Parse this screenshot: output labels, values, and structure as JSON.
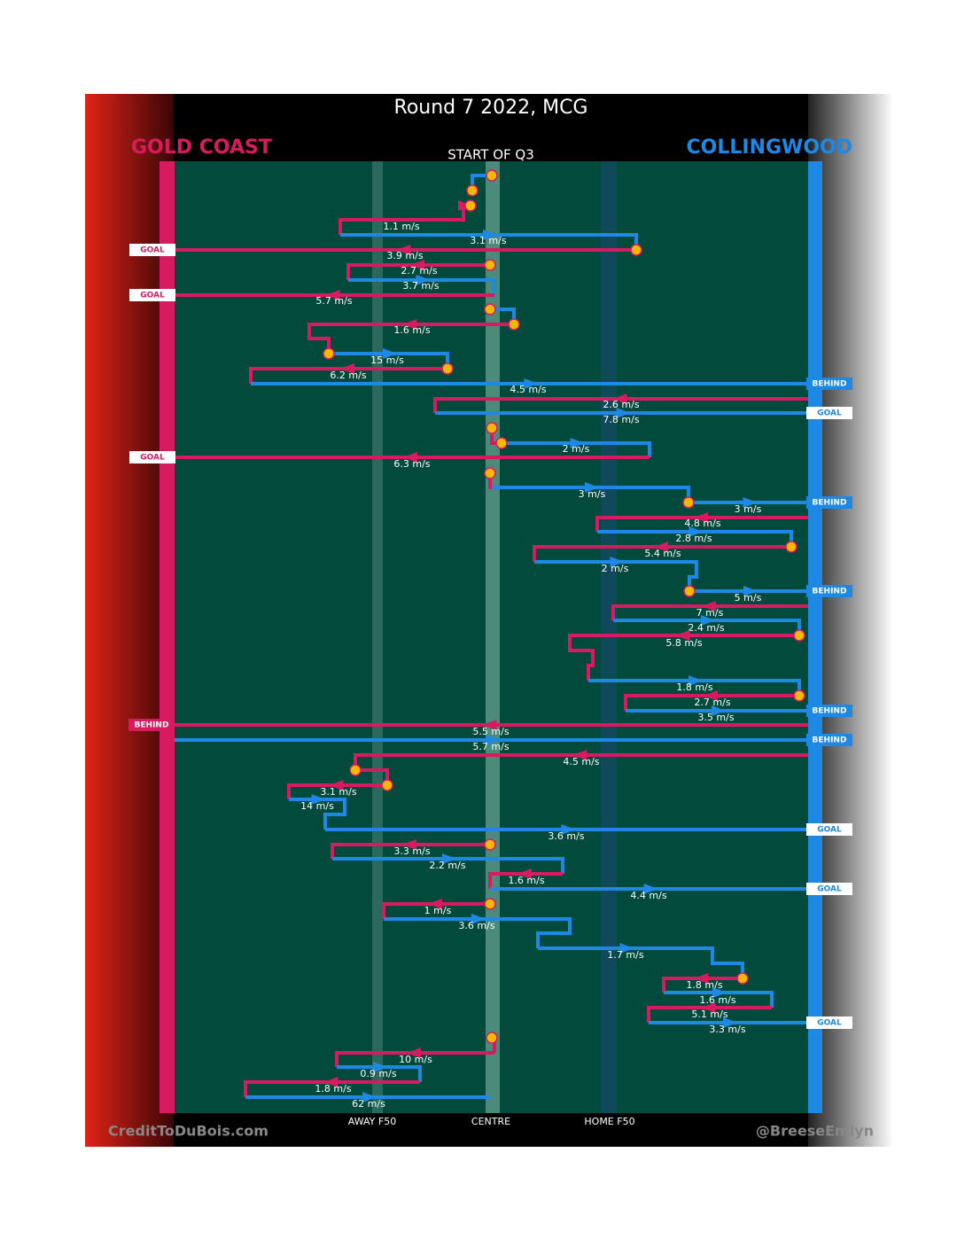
{
  "header": {
    "title": "Round 7 2022, MCG",
    "left_team": "GOLD COAST",
    "right_team": "COLLINGWOOD",
    "subtitle": "START OF Q3"
  },
  "movements": [
    {
      "label": "1.1 m/s",
      "color": "#d81b60"
    },
    {
      "label": "3.1 m/s",
      "color": "#1e88e5"
    },
    {
      "label": "3.9 m/s",
      "color": "#d81b60"
    },
    {
      "label": "2.7 m/s",
      "color": "#d81b60"
    },
    {
      "label": "3.7 m/s",
      "color": "#1e88e5"
    },
    {
      "label": "5.7 m/s",
      "color": "#d81b60"
    },
    {
      "label": "1.6 m/s",
      "color": "#d81b60"
    },
    {
      "label": "15 m/s",
      "color": "#1e88e5"
    },
    {
      "label": "6.2 m/s",
      "color": "#d81b60"
    },
    {
      "label": "4.5 m/s",
      "color": "#1e88e5"
    },
    {
      "label": "2.6 m/s",
      "color": "#d81b60"
    },
    {
      "label": "7.8 m/s",
      "color": "#1e88e5"
    },
    {
      "label": "2 m/s",
      "color": "#1e88e5"
    },
    {
      "label": "6.3 m/s",
      "color": "#d81b60"
    },
    {
      "label": "3 m/s",
      "color": "#1e88e5"
    },
    {
      "label": "3 m/s",
      "color": "#1e88e5"
    },
    {
      "label": "4.8 m/s",
      "color": "#d81b60"
    },
    {
      "label": "2.8 m/s",
      "color": "#1e88e5"
    },
    {
      "label": "5.4 m/s",
      "color": "#d81b60"
    },
    {
      "label": "2 m/s",
      "color": "#1e88e5"
    },
    {
      "label": "5 m/s",
      "color": "#1e88e5"
    },
    {
      "label": "7 m/s",
      "color": "#d81b60"
    },
    {
      "label": "2.4 m/s",
      "color": "#1e88e5"
    },
    {
      "label": "5.8 m/s",
      "color": "#d81b60"
    },
    {
      "label": "1.8 m/s",
      "color": "#1e88e5"
    },
    {
      "label": "2.7 m/s",
      "color": "#d81b60"
    },
    {
      "label": "3.5 m/s",
      "color": "#1e88e5"
    },
    {
      "label": "5.5 m/s",
      "color": "#d81b60"
    },
    {
      "label": "5.7 m/s",
      "color": "#1e88e5"
    },
    {
      "label": "4.5 m/s",
      "color": "#d81b60"
    },
    {
      "label": "3.1 m/s",
      "color": "#d81b60"
    },
    {
      "label": "14 m/s",
      "color": "#1e88e5"
    },
    {
      "label": "3.6 m/s",
      "color": "#1e88e5"
    },
    {
      "label": "3.3 m/s",
      "color": "#d81b60"
    },
    {
      "label": "2.2 m/s",
      "color": "#1e88e5"
    },
    {
      "label": "1.6 m/s",
      "color": "#d81b60"
    },
    {
      "label": "4.4 m/s",
      "color": "#1e88e5"
    },
    {
      "label": "1 m/s",
      "color": "#d81b60"
    },
    {
      "label": "3.6 m/s",
      "color": "#1e88e5"
    },
    {
      "label": "1.7 m/s",
      "color": "#1e88e5"
    },
    {
      "label": "1.8 m/s",
      "color": "#d81b60"
    },
    {
      "label": "1.6 m/s",
      "color": "#1e88e5"
    },
    {
      "label": "5.1 m/s",
      "color": "#d81b60"
    },
    {
      "label": "3.3 m/s",
      "color": "#1e88e5"
    },
    {
      "label": "10 m/s",
      "color": "#d81b60"
    },
    {
      "label": "0.9 m/s",
      "color": "#1e88e5"
    },
    {
      "label": "1.8 m/s",
      "color": "#d81b60"
    },
    {
      "label": "62 m/s",
      "color": "#1e88e5"
    }
  ],
  "left_tags": [
    "GOAL",
    "GOAL",
    "GOAL",
    "BEHIND"
  ],
  "right_tags": [
    "BEHIND",
    "GOAL",
    "BEHIND",
    "BEHIND",
    "BEHIND",
    "BEHIND",
    "GOAL",
    "GOAL",
    "GOAL"
  ],
  "field_labels": [
    "AWAY F50",
    "CENTRE",
    "HOME F50"
  ],
  "footer": {
    "left": "CreditToDuBois.com",
    "right": "@BreeseEmlyn"
  }
}
